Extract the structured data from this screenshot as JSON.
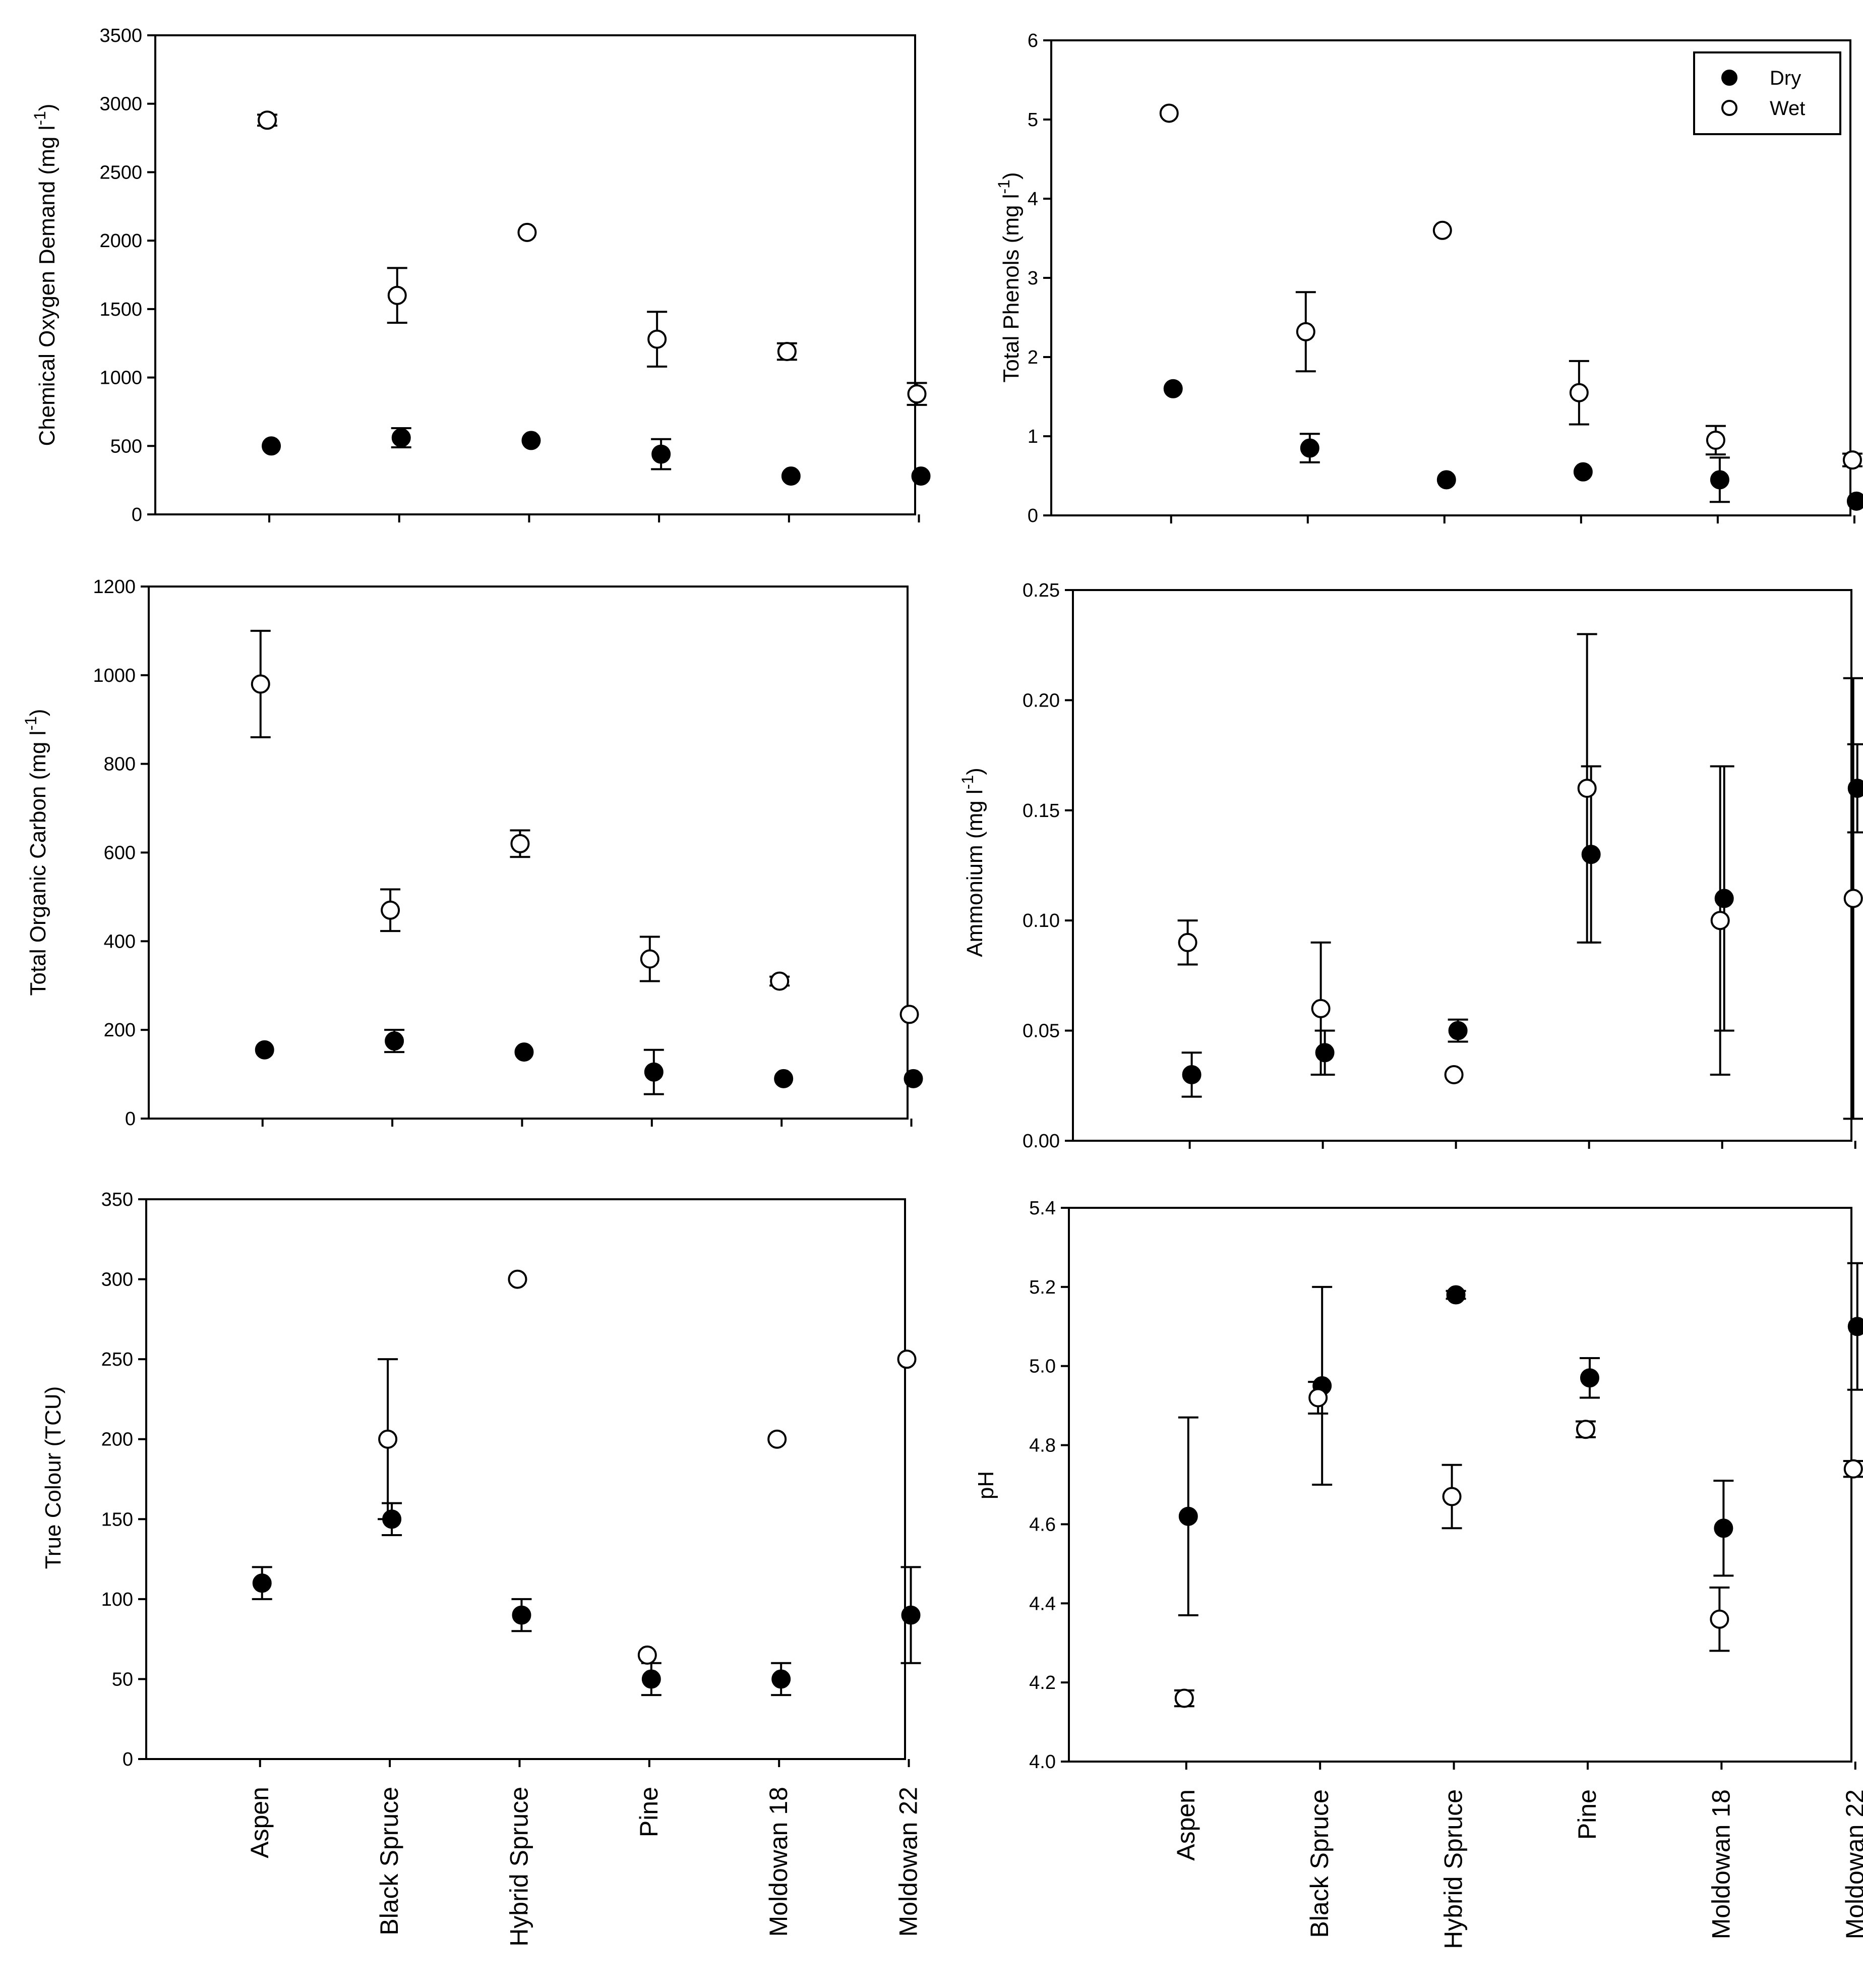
{
  "categories": [
    "Aspen",
    "Black Spruce",
    "Hybrid Spruce",
    "Pine",
    "Moldowan 18",
    "Moldowan 22"
  ],
  "legend": {
    "dry_label": "Dry",
    "wet_label": "Wet"
  },
  "colors": {
    "axis": "#000000",
    "dry_marker": "#000000",
    "wet_marker": "#ffffff",
    "label": "#000000"
  },
  "chart_data": [
    {
      "id": "cod",
      "type": "scatter",
      "title": "",
      "ylabel": "Chemical Oxygen Demand (mg l",
      "ylabel_unit_exp": "-1",
      "ylabel_close": ")",
      "xlabel": "",
      "ylim": [
        0,
        3500
      ],
      "yticks": [
        0,
        500,
        1000,
        1500,
        2000,
        2500,
        3000,
        3500
      ],
      "ytick_labels": [
        "0",
        "500",
        "1000",
        "1500",
        "2000",
        "2500",
        "3000",
        "3500"
      ],
      "series": [
        {
          "name": "Dry",
          "values": [
            500,
            560,
            540,
            440,
            280,
            280
          ],
          "errors": [
            0,
            70,
            0,
            110,
            0,
            0
          ]
        },
        {
          "name": "Wet",
          "values": [
            2880,
            1600,
            2060,
            1280,
            1190,
            880
          ],
          "errors": [
            40,
            200,
            0,
            200,
            60,
            80
          ]
        }
      ]
    },
    {
      "id": "phenols",
      "type": "scatter",
      "title": "",
      "ylabel": "Total Phenols (mg l",
      "ylabel_unit_exp": "-1",
      "ylabel_close": ")",
      "xlabel": "",
      "ylim": [
        0,
        6
      ],
      "yticks": [
        0,
        1,
        2,
        3,
        4,
        5,
        6
      ],
      "ytick_labels": [
        "0",
        "1",
        "2",
        "3",
        "4",
        "5",
        "6"
      ],
      "legend_position": "top-right",
      "series": [
        {
          "name": "Dry",
          "values": [
            1.6,
            0.85,
            0.45,
            0.55,
            0.45,
            0.18
          ],
          "errors": [
            0,
            0.18,
            0,
            0,
            0.28,
            0
          ]
        },
        {
          "name": "Wet",
          "values": [
            5.08,
            2.32,
            3.6,
            1.55,
            0.95,
            0.7
          ],
          "errors": [
            0,
            0.5,
            0,
            0.4,
            0.18,
            0.08
          ]
        }
      ]
    },
    {
      "id": "toc",
      "type": "scatter",
      "title": "",
      "ylabel": "Total Organic Carbon (mg l",
      "ylabel_unit_exp": "-1",
      "ylabel_close": ")",
      "xlabel": "",
      "ylim": [
        0,
        1200
      ],
      "yticks": [
        0,
        200,
        400,
        600,
        800,
        1000,
        1200
      ],
      "ytick_labels": [
        "0",
        "200",
        "400",
        "600",
        "800",
        "1000",
        "1200"
      ],
      "series": [
        {
          "name": "Dry",
          "values": [
            155,
            175,
            150,
            105,
            90,
            90
          ],
          "errors": [
            0,
            25,
            0,
            50,
            0,
            0
          ]
        },
        {
          "name": "Wet",
          "values": [
            980,
            470,
            620,
            360,
            310,
            235
          ],
          "errors": [
            120,
            47,
            30,
            50,
            10,
            0
          ]
        }
      ]
    },
    {
      "id": "ammonium",
      "type": "scatter",
      "title": "",
      "ylabel": "Ammonium (mg l",
      "ylabel_unit_exp": "-1",
      "ylabel_close": ")",
      "xlabel": "",
      "ylim": [
        0,
        0.25
      ],
      "yticks": [
        0,
        0.05,
        0.1,
        0.15,
        0.2,
        0.25
      ],
      "ytick_labels": [
        "0.00",
        "0.05",
        "0.10",
        "0.15",
        "0.20",
        "0.25"
      ],
      "series": [
        {
          "name": "Dry",
          "values": [
            0.03,
            0.04,
            0.05,
            0.13,
            0.11,
            0.16
          ],
          "errors": [
            0.01,
            0.01,
            0.005,
            0.04,
            0.06,
            0.02
          ]
        },
        {
          "name": "Wet",
          "values": [
            0.09,
            0.06,
            0.03,
            0.16,
            0.1,
            0.11
          ],
          "errors": [
            0.01,
            0.03,
            0,
            0.07,
            0.07,
            0.1
          ]
        }
      ]
    },
    {
      "id": "colour",
      "type": "scatter",
      "title": "",
      "ylabel": "True Colour (TCU)",
      "ylabel_unit_exp": "",
      "ylabel_close": "",
      "xlabel": "",
      "ylim": [
        0,
        350
      ],
      "yticks": [
        0,
        50,
        100,
        150,
        200,
        250,
        300,
        350
      ],
      "ytick_labels": [
        "0",
        "50",
        "100",
        "150",
        "200",
        "250",
        "300",
        "350"
      ],
      "series": [
        {
          "name": "Dry",
          "values": [
            110,
            150,
            90,
            50,
            50,
            90
          ],
          "errors": [
            10,
            10,
            10,
            10,
            10,
            30
          ]
        },
        {
          "name": "Wet",
          "values": [
            null,
            200,
            300,
            65,
            200,
            250
          ],
          "errors": [
            0,
            50,
            0,
            0,
            0,
            0
          ]
        }
      ]
    },
    {
      "id": "ph",
      "type": "scatter",
      "title": "",
      "ylabel": "pH",
      "ylabel_unit_exp": "",
      "ylabel_close": "",
      "xlabel": "",
      "ylim": [
        4.0,
        5.4
      ],
      "yticks": [
        4.0,
        4.2,
        4.4,
        4.6,
        4.8,
        5.0,
        5.2,
        5.4
      ],
      "ytick_labels": [
        "4.0",
        "4.2",
        "4.4",
        "4.6",
        "4.8",
        "5.0",
        "5.2",
        "5.4"
      ],
      "series": [
        {
          "name": "Dry",
          "values": [
            4.62,
            4.95,
            5.18,
            4.97,
            4.59,
            5.1
          ],
          "errors": [
            0.25,
            0.25,
            0.01,
            0.05,
            0.12,
            0.16
          ]
        },
        {
          "name": "Wet",
          "values": [
            4.16,
            4.92,
            4.67,
            4.84,
            4.36,
            4.74
          ],
          "errors": [
            0.02,
            0.04,
            0.08,
            0.02,
            0.08,
            0.02
          ]
        }
      ]
    }
  ]
}
